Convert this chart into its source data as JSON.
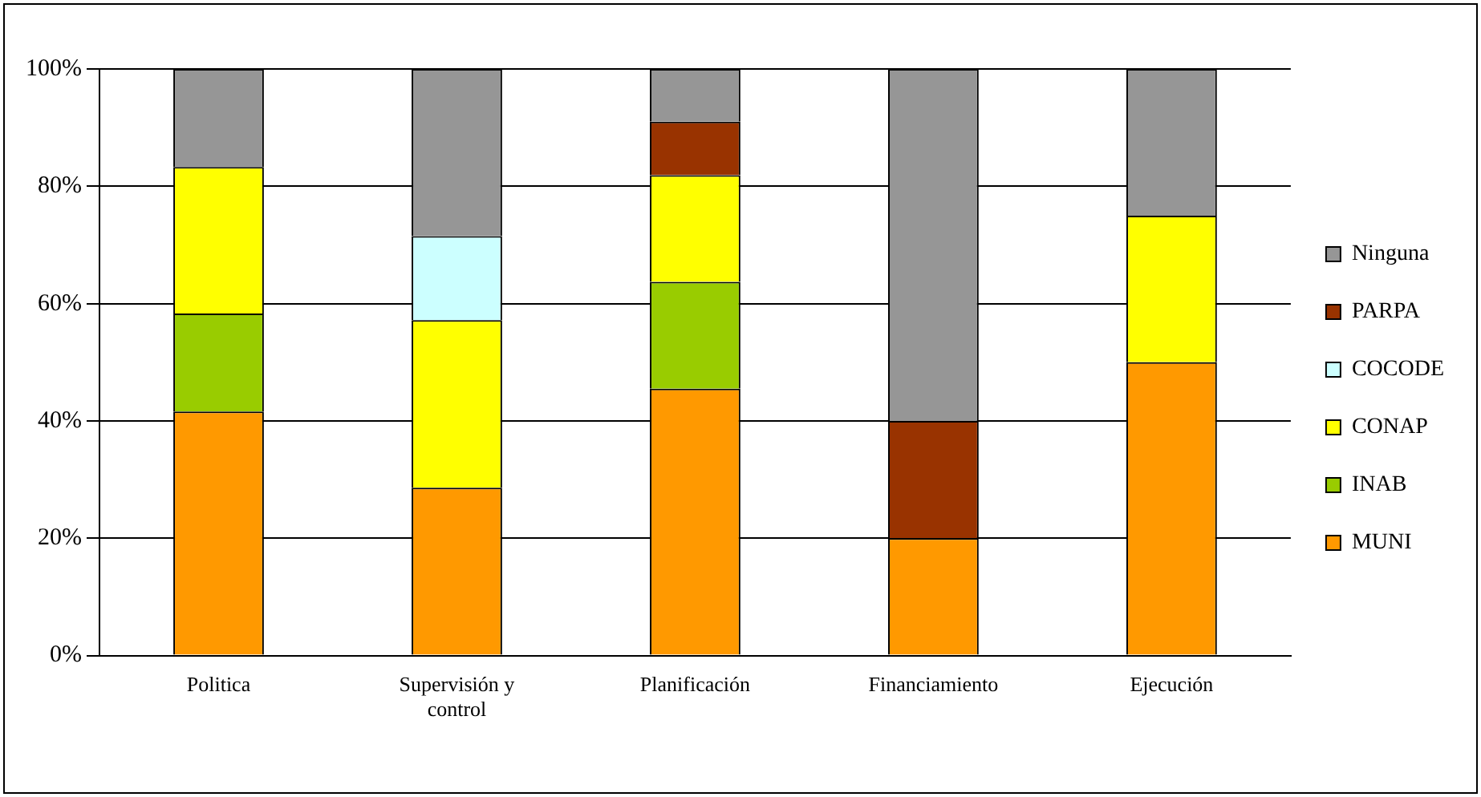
{
  "chart_data": {
    "type": "bar",
    "stacked": true,
    "categories": [
      "Politica",
      "Supervisión y control",
      "Planificación",
      "Financiamiento",
      "Ejecución"
    ],
    "series": [
      {
        "name": "MUNI",
        "color": "#ff9900",
        "values": [
          41.6,
          28.6,
          45.5,
          20,
          50
        ]
      },
      {
        "name": "INAB",
        "color": "#99cc00",
        "values": [
          16.7,
          0,
          18.2,
          0,
          0
        ]
      },
      {
        "name": "CONAP",
        "color": "#ffff00",
        "values": [
          25,
          28.6,
          18.2,
          0,
          25
        ]
      },
      {
        "name": "COCODE",
        "color": "#ccffff",
        "values": [
          0,
          14.3,
          0,
          0,
          0
        ]
      },
      {
        "name": "PARPA",
        "color": "#993300",
        "values": [
          0,
          0,
          9.1,
          20,
          0
        ]
      },
      {
        "name": "Ninguna",
        "color": "#969696",
        "values": [
          16.7,
          28.5,
          9,
          60,
          25
        ]
      }
    ],
    "ylim": [
      0,
      100
    ],
    "yticks": [
      {
        "value": 0,
        "label": "0%"
      },
      {
        "value": 20,
        "label": "20%"
      },
      {
        "value": 40,
        "label": "40%"
      },
      {
        "value": 60,
        "label": "60%"
      },
      {
        "value": 80,
        "label": "80%"
      },
      {
        "value": 100,
        "label": "100%"
      }
    ],
    "grid": "y",
    "legend": "right"
  }
}
